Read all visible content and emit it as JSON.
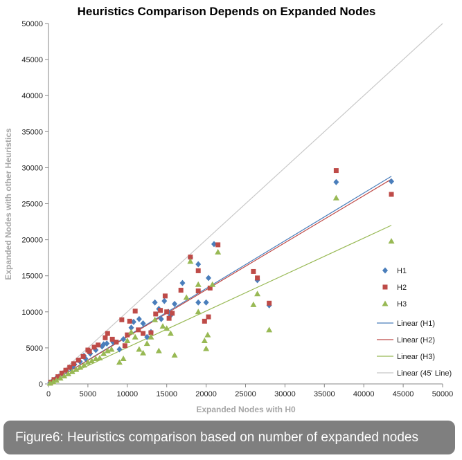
{
  "caption": "Figure6: Heuristics comparison based on number of expanded nodes",
  "chart_data": {
    "type": "scatter",
    "title": "Heuristics  Comparison  Depends  on  Expanded  Nodes",
    "xlabel": "Expanded Nodes with H0",
    "ylabel": "Expanded Nodes with other Heuristics",
    "xlim": [
      0,
      50000
    ],
    "ylim": [
      0,
      50000
    ],
    "x_ticks": [
      "0",
      "5000",
      "10000",
      "15000",
      "20000",
      "25000",
      "30000",
      "35000",
      "40000",
      "45000",
      "50000"
    ],
    "y_ticks": [
      "0",
      "5000",
      "10000",
      "15000",
      "20000",
      "25000",
      "30000",
      "35000",
      "40000",
      "45000",
      "50000"
    ],
    "grid": false,
    "legend_position": "right",
    "colors": {
      "H1": "#4a7ebb",
      "H2": "#be4b48",
      "H3": "#98b954",
      "ref": "#c8c8c8"
    },
    "series": [
      {
        "name": "H1",
        "marker": "diamond",
        "points": [
          [
            200,
            180
          ],
          [
            500,
            400
          ],
          [
            900,
            700
          ],
          [
            1300,
            1000
          ],
          [
            1800,
            1400
          ],
          [
            2300,
            1800
          ],
          [
            2800,
            2200
          ],
          [
            3300,
            2700
          ],
          [
            4000,
            3100
          ],
          [
            4700,
            3500
          ],
          [
            5300,
            4200
          ],
          [
            6000,
            4700
          ],
          [
            6800,
            5200
          ],
          [
            7400,
            5600
          ],
          [
            8200,
            5800
          ],
          [
            9000,
            4800
          ],
          [
            9500,
            6200
          ],
          [
            10500,
            7800
          ],
          [
            10800,
            8600
          ],
          [
            11500,
            9000
          ],
          [
            12000,
            8400
          ],
          [
            13000,
            7200
          ],
          [
            13500,
            11300
          ],
          [
            14000,
            10400
          ],
          [
            14300,
            9000
          ],
          [
            14700,
            11500
          ],
          [
            15200,
            10000
          ],
          [
            15500,
            9500
          ],
          [
            16000,
            11100
          ],
          [
            17000,
            14000
          ],
          [
            18000,
            17500
          ],
          [
            19000,
            16600
          ],
          [
            19000,
            11300
          ],
          [
            20000,
            11300
          ],
          [
            20300,
            14700
          ],
          [
            21000,
            19400
          ],
          [
            26500,
            14400
          ],
          [
            28000,
            10900
          ],
          [
            36500,
            28000
          ],
          [
            43500,
            28100
          ],
          [
            3000,
            2300
          ],
          [
            4500,
            3900
          ],
          [
            7000,
            5500
          ],
          [
            12500,
            6500
          ]
        ]
      },
      {
        "name": "H2",
        "marker": "square",
        "points": [
          [
            300,
            250
          ],
          [
            700,
            600
          ],
          [
            1200,
            1000
          ],
          [
            1700,
            1500
          ],
          [
            2200,
            1900
          ],
          [
            2700,
            2300
          ],
          [
            3200,
            2800
          ],
          [
            3800,
            3300
          ],
          [
            4400,
            3800
          ],
          [
            5200,
            4500
          ],
          [
            5800,
            5100
          ],
          [
            6300,
            5400
          ],
          [
            7200,
            6400
          ],
          [
            7500,
            7000
          ],
          [
            8100,
            6200
          ],
          [
            9300,
            8900
          ],
          [
            9700,
            5300
          ],
          [
            10000,
            6800
          ],
          [
            10300,
            8700
          ],
          [
            11000,
            10100
          ],
          [
            11400,
            7500
          ],
          [
            12000,
            7000
          ],
          [
            13000,
            7100
          ],
          [
            13600,
            9700
          ],
          [
            14200,
            10200
          ],
          [
            14800,
            12200
          ],
          [
            15000,
            10000
          ],
          [
            15300,
            9100
          ],
          [
            15700,
            9800
          ],
          [
            16800,
            13000
          ],
          [
            18000,
            17600
          ],
          [
            19000,
            15700
          ],
          [
            19000,
            12900
          ],
          [
            19800,
            8700
          ],
          [
            20300,
            9300
          ],
          [
            20500,
            13300
          ],
          [
            21500,
            19300
          ],
          [
            26000,
            15600
          ],
          [
            26500,
            14700
          ],
          [
            28000,
            11200
          ],
          [
            36500,
            29600
          ],
          [
            43500,
            26300
          ],
          [
            8600,
            5800
          ],
          [
            5000,
            4700
          ]
        ]
      },
      {
        "name": "H3",
        "marker": "triangle",
        "points": [
          [
            200,
            100
          ],
          [
            600,
            300
          ],
          [
            1000,
            500
          ],
          [
            1500,
            800
          ],
          [
            2000,
            1100
          ],
          [
            2500,
            1400
          ],
          [
            3000,
            1700
          ],
          [
            3500,
            2000
          ],
          [
            4000,
            2300
          ],
          [
            4500,
            2600
          ],
          [
            5000,
            3000
          ],
          [
            5500,
            3200
          ],
          [
            6000,
            3500
          ],
          [
            6500,
            3600
          ],
          [
            7000,
            4200
          ],
          [
            7500,
            4600
          ],
          [
            8000,
            4800
          ],
          [
            9000,
            3000
          ],
          [
            9500,
            3500
          ],
          [
            10000,
            6000
          ],
          [
            10500,
            7200
          ],
          [
            11000,
            6500
          ],
          [
            11500,
            4800
          ],
          [
            12000,
            4300
          ],
          [
            12500,
            5600
          ],
          [
            13000,
            6500
          ],
          [
            13500,
            8900
          ],
          [
            14000,
            4600
          ],
          [
            14500,
            8000
          ],
          [
            15000,
            7700
          ],
          [
            15500,
            7000
          ],
          [
            16000,
            4000
          ],
          [
            17500,
            12000
          ],
          [
            18000,
            17000
          ],
          [
            19000,
            10000
          ],
          [
            19000,
            13800
          ],
          [
            19800,
            6000
          ],
          [
            20000,
            4900
          ],
          [
            20200,
            6800
          ],
          [
            20800,
            13800
          ],
          [
            21500,
            18300
          ],
          [
            26000,
            11000
          ],
          [
            26500,
            12500
          ],
          [
            28000,
            7500
          ],
          [
            36500,
            25800
          ],
          [
            43500,
            19800
          ]
        ]
      },
      {
        "name": "Linear (H1)",
        "type": "line",
        "x": [
          0,
          43500
        ],
        "y": [
          0,
          28800
        ]
      },
      {
        "name": "Linear (H2)",
        "type": "line",
        "x": [
          0,
          43500
        ],
        "y": [
          0,
          28400
        ]
      },
      {
        "name": "Linear (H3)",
        "type": "line",
        "x": [
          0,
          43500
        ],
        "y": [
          0,
          22000
        ]
      },
      {
        "name": "Linear (45' Line)",
        "type": "line",
        "x": [
          0,
          50000
        ],
        "y": [
          0,
          50000
        ]
      }
    ]
  }
}
